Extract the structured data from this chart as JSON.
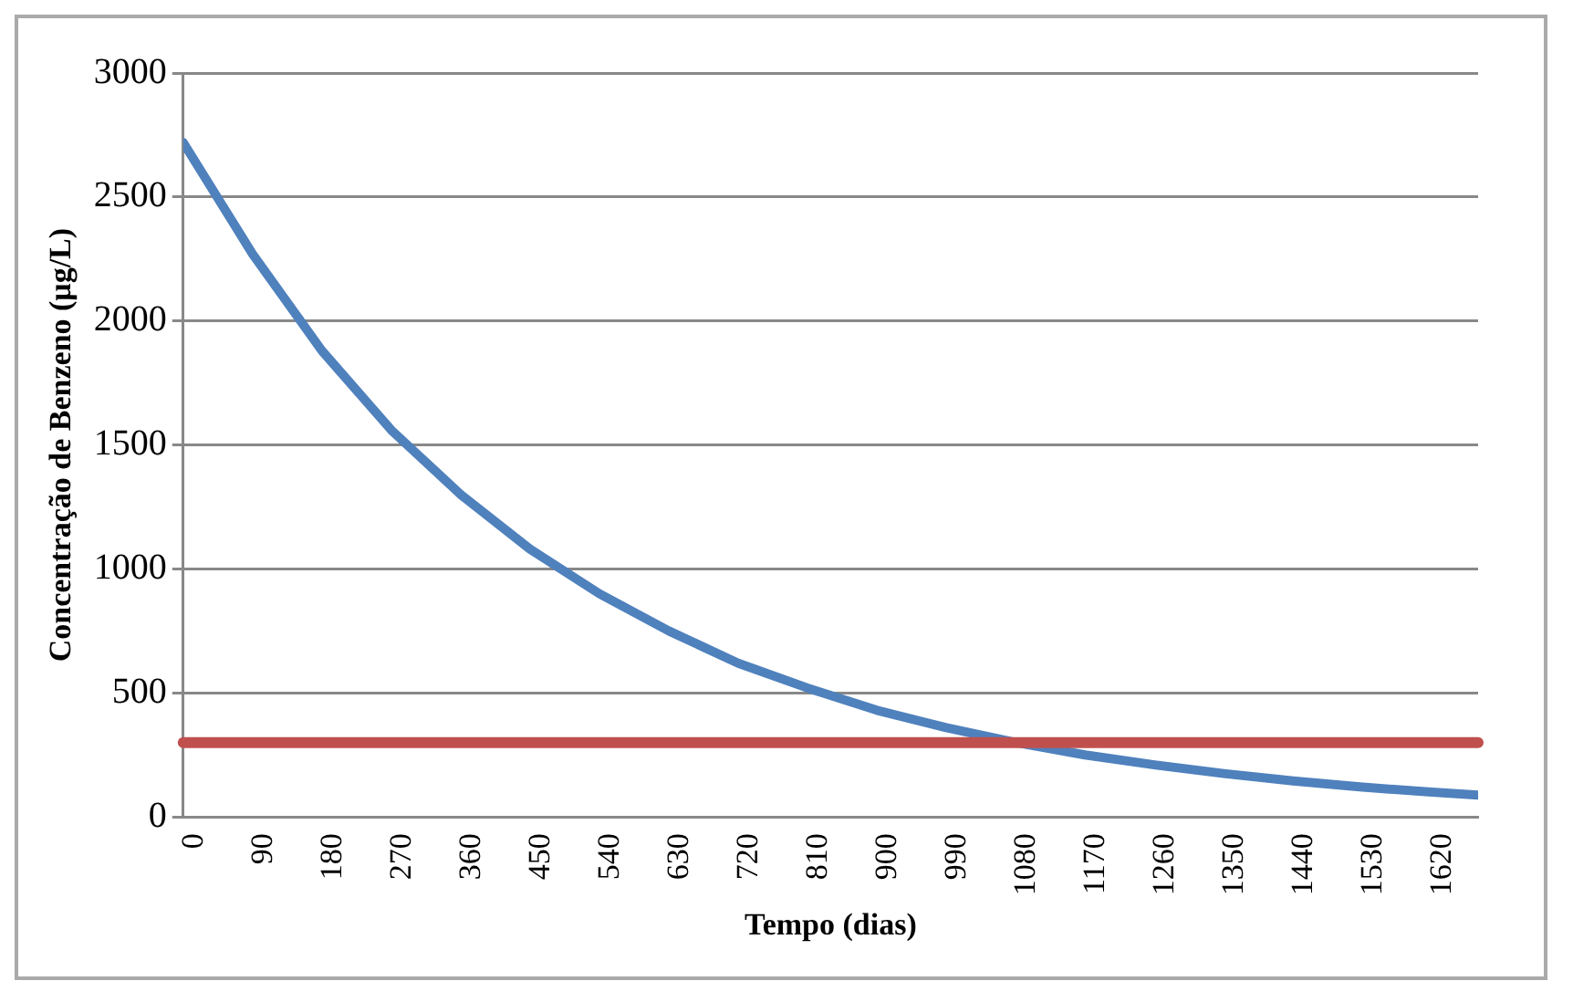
{
  "chart_data": {
    "type": "line",
    "xlabel": "Tempo (dias)",
    "ylabel": "Concentração de Benzeno (μg/L)",
    "x": [
      0,
      90,
      180,
      270,
      360,
      450,
      540,
      630,
      720,
      810,
      900,
      990,
      1080,
      1170,
      1260,
      1350,
      1440,
      1530,
      1620,
      1680
    ],
    "series": [
      {
        "color": "#4f81bd",
        "values": [
          2720,
          2270,
          1880,
          1560,
          1300,
          1080,
          900,
          750,
          620,
          520,
          430,
          360,
          300,
          250,
          210,
          175,
          145,
          120,
          100,
          88
        ]
      }
    ],
    "xlim": [
      0,
      1680
    ],
    "xticks": [
      0,
      90,
      180,
      270,
      360,
      450,
      540,
      630,
      720,
      810,
      900,
      990,
      1080,
      1170,
      1260,
      1350,
      1440,
      1530,
      1620
    ],
    "ylim": [
      0,
      3000
    ],
    "yticks": [
      0,
      500,
      1000,
      1500,
      2000,
      2500,
      3000
    ],
    "ref_lines": [
      {
        "axis": "y",
        "value": 300,
        "color": "#c0504d"
      }
    ],
    "grid": "y",
    "legend": false,
    "marker": "none",
    "line_style": "solid"
  }
}
